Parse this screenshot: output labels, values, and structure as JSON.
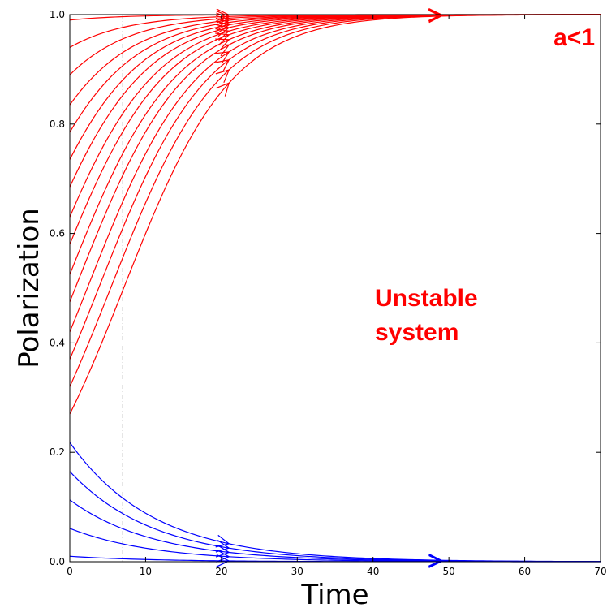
{
  "chart_data": {
    "type": "line",
    "xlabel": "Time",
    "ylabel": "Polarization",
    "xlim": [
      0,
      70
    ],
    "ylim": [
      0,
      1
    ],
    "xticks": [
      0,
      10,
      20,
      30,
      40,
      50,
      60,
      70
    ],
    "xtick_labels": [
      "0",
      "10",
      "20",
      "30",
      "40",
      "50",
      "60",
      "70"
    ],
    "yticks": [
      0.0,
      0.2,
      0.4,
      0.6,
      0.8,
      1.0
    ],
    "ytick_labels": [
      "0.0",
      "0.2",
      "0.4",
      "0.6",
      "0.8",
      "1.0"
    ],
    "grid": false,
    "reference_line": {
      "x": 7,
      "style": "dash-dot",
      "color": "#000000"
    },
    "arrow_times": [
      21,
      49
    ],
    "colors": {
      "unstable": "#ff0000",
      "stable": "#0000ff"
    },
    "red_trajectories": [
      {
        "initial": 0.27,
        "rate": 0.14,
        "final": 1.0
      },
      {
        "initial": 0.32,
        "rate": 0.14,
        "final": 1.0
      },
      {
        "initial": 0.37,
        "rate": 0.14,
        "final": 1.0
      },
      {
        "initial": 0.42,
        "rate": 0.14,
        "final": 1.0
      },
      {
        "initial": 0.475,
        "rate": 0.14,
        "final": 1.0
      },
      {
        "initial": 0.525,
        "rate": 0.14,
        "final": 1.0
      },
      {
        "initial": 0.58,
        "rate": 0.14,
        "final": 1.0
      },
      {
        "initial": 0.63,
        "rate": 0.14,
        "final": 1.0
      },
      {
        "initial": 0.685,
        "rate": 0.14,
        "final": 1.0
      },
      {
        "initial": 0.735,
        "rate": 0.14,
        "final": 1.0
      },
      {
        "initial": 0.785,
        "rate": 0.14,
        "final": 1.0
      },
      {
        "initial": 0.835,
        "rate": 0.14,
        "final": 1.0
      },
      {
        "initial": 0.89,
        "rate": 0.14,
        "final": 1.0
      },
      {
        "initial": 0.94,
        "rate": 0.14,
        "final": 1.0
      },
      {
        "initial": 0.99,
        "rate": 0.14,
        "final": 1.0
      }
    ],
    "blue_trajectories": [
      {
        "initial": 0.218,
        "rate": 0.09,
        "final": 0.0
      },
      {
        "initial": 0.165,
        "rate": 0.09,
        "final": 0.0
      },
      {
        "initial": 0.113,
        "rate": 0.09,
        "final": 0.0
      },
      {
        "initial": 0.061,
        "rate": 0.09,
        "final": 0.0
      },
      {
        "initial": 0.01,
        "rate": 0.09,
        "final": 0.0
      }
    ],
    "annotations": [
      {
        "text": "a<1",
        "color": "#ff0000"
      },
      {
        "lines": [
          "Unstable",
          "system"
        ],
        "color": "#ff0000"
      }
    ]
  }
}
